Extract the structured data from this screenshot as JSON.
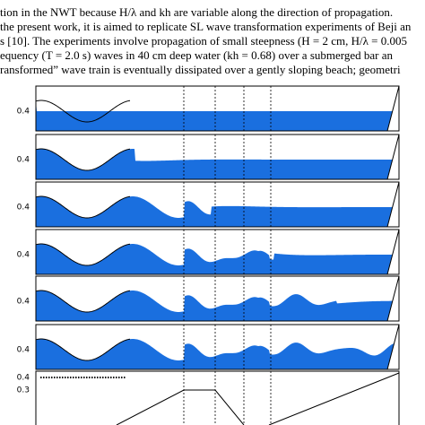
{
  "text_lines": [
    "tion in the NWT because H/λ and kh are variable along the direction of propagation.",
    "the present work, it is aimed to replicate SL wave transformation experiments of Beji an",
    "s [10]. The experiments involve propagation of small steepness (H = 2 cm, H/λ = 0.005",
    "equency (T = 2.0 s) waves in 40 cm deep water (kh = 0.68) over a submerged bar an",
    "ransformed” wave train is eventually dissipated over a gently sloping beach; geometri"
  ],
  "panels": [
    {
      "ytick": "0.4"
    },
    {
      "ytick": "0.4"
    },
    {
      "ytick": "0.4"
    },
    {
      "ytick": "0.4"
    },
    {
      "ytick": "0.4"
    },
    {
      "ytick": "0.4"
    }
  ],
  "bathymetry": {
    "yticks": [
      "0.4",
      "0.3"
    ]
  }
}
